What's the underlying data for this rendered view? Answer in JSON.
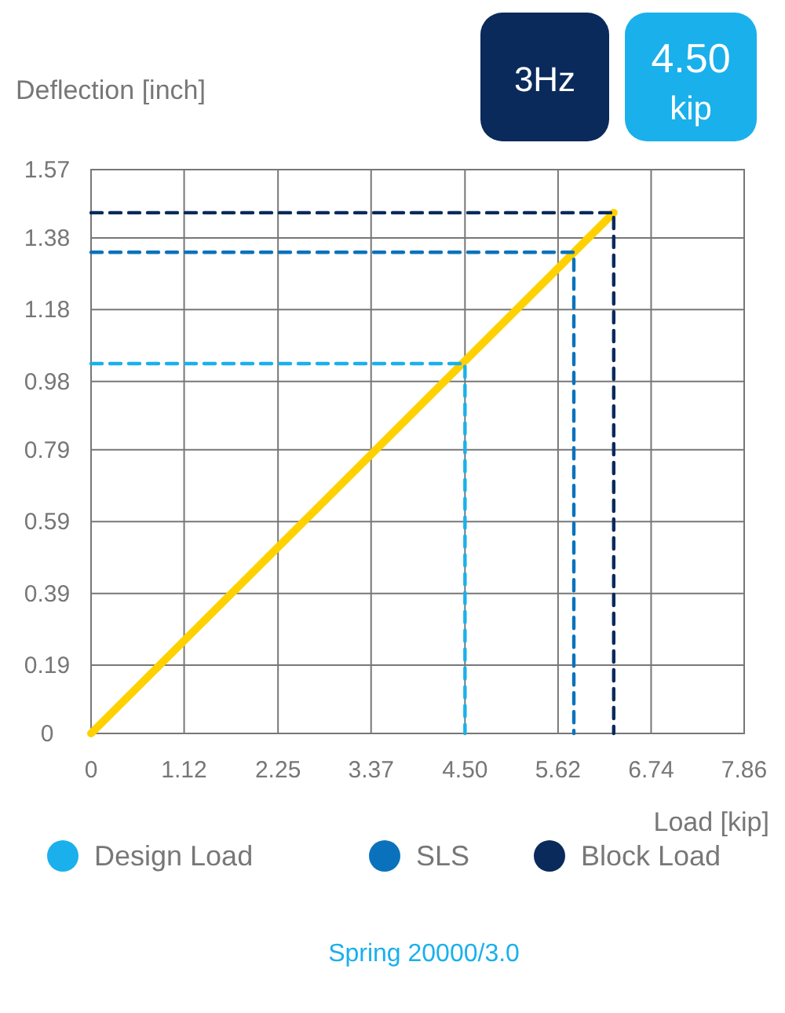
{
  "chart_data": {
    "type": "line",
    "xlabel": "Load [kip]",
    "ylabel": "Deflection [inch]",
    "xlim": [
      0,
      7.86
    ],
    "ylim": [
      0,
      1.57
    ],
    "xticks": [
      0,
      1.12,
      2.25,
      3.37,
      {
        "value": 4.5,
        "label": "4.50"
      },
      5.62,
      6.74,
      7.86
    ],
    "yticks": [
      0,
      0.19,
      0.39,
      0.59,
      0.79,
      0.98,
      1.18,
      1.38,
      1.57
    ],
    "grid": true,
    "legend": "bottom",
    "series": [
      {
        "color": "#ffd100",
        "x": [
          0,
          6.29
        ],
        "values": [
          0,
          1.45
        ],
        "line_style": "solid"
      },
      {
        "name": "Design Load",
        "color": "#1ab0ec",
        "x": [
          0,
          4.5,
          4.5
        ],
        "values": [
          1.03,
          1.03,
          0
        ],
        "line_style": "dashed"
      },
      {
        "name": "SLS",
        "color": "#0a72bd",
        "x": [
          0,
          5.81,
          5.81
        ],
        "values": [
          1.34,
          1.34,
          0
        ],
        "line_style": "dashed"
      },
      {
        "name": "Block Load",
        "color": "#0a2a5c",
        "x": [
          0,
          6.29,
          6.29
        ],
        "values": [
          1.45,
          1.45,
          0
        ],
        "line_style": "dashed"
      }
    ],
    "annotations": [
      "3Hz",
      "4.50 kip",
      "Spring 20000/3.0"
    ]
  }
}
